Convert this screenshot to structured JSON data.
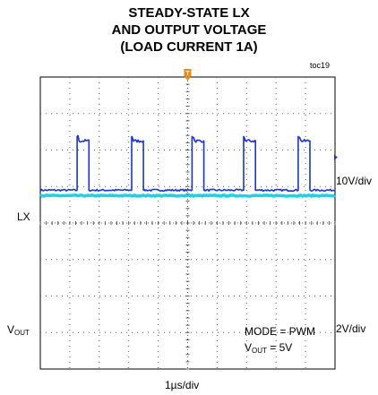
{
  "title": {
    "line1": "STEADY-STATE LX",
    "line2": "AND OUTPUT VOLTAGE",
    "line3": "(LOAD CURRENT 1A)"
  },
  "figure_id": "toc19",
  "trigger_marker": "T",
  "labels": {
    "lx": "LX",
    "vout_main": "V",
    "vout_sub": "OUT",
    "lx_scale": "10V/div",
    "vout_scale": "2V/div",
    "mode": "MODE = PWM",
    "vout_setting_main": "V",
    "vout_setting_sub": "OUT",
    "vout_setting_rest": " = 5V",
    "time_scale": "1µs/div"
  },
  "colors": {
    "lx_trace": "#1c35c9",
    "vout_trace": "#19d4e6",
    "grid": "#555555",
    "trigger": "#e58a1f"
  },
  "chart_data": {
    "type": "line",
    "x_unit": "div",
    "xlim": [
      0,
      10
    ],
    "ylim": [
      0,
      8
    ],
    "grid": true,
    "series": [
      {
        "name": "LX",
        "scale": "10V/div",
        "baseline_div": 4.9,
        "high_div": 6.25,
        "pulses": [
          [
            1.25,
            1.65
          ],
          [
            3.1,
            3.5
          ],
          [
            5.15,
            5.55
          ],
          [
            6.9,
            7.3
          ],
          [
            8.75,
            9.15
          ]
        ],
        "marker": "10V/div arrow"
      },
      {
        "name": "VOUT",
        "scale": "2V/div",
        "level_div": 4.75
      }
    ]
  }
}
